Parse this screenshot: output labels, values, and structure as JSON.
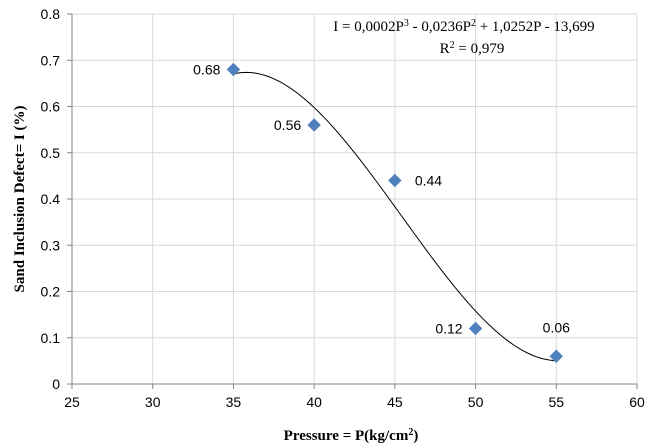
{
  "chart_data": {
    "type": "scatter",
    "title": "",
    "xlabel": "Pressure = P(kg/cm",
    "xlabel_sup": "2",
    "xlabel_end": ")",
    "ylabel": "Sand Inclusion Defect= I (%)",
    "xlim": [
      25,
      60
    ],
    "ylim": [
      0,
      0.8
    ],
    "x_ticks": [
      "25",
      "30",
      "35",
      "40",
      "45",
      "50",
      "55",
      "60"
    ],
    "y_ticks": [
      "0",
      "0.1",
      "0.2",
      "0.3",
      "0.4",
      "0.5",
      "0.6",
      "0.7",
      "0.8"
    ],
    "grid": true,
    "legend": "none",
    "marker_color": "#4f81bd",
    "points": [
      {
        "x": 35,
        "y": 0.68,
        "label": "0.68"
      },
      {
        "x": 40,
        "y": 0.56,
        "label": "0.56"
      },
      {
        "x": 45,
        "y": 0.44,
        "label": "0.44"
      },
      {
        "x": 50,
        "y": 0.12,
        "label": "0.12"
      },
      {
        "x": 55,
        "y": 0.06,
        "label": "0.06"
      }
    ],
    "trendline": {
      "type": "polynomial-3",
      "coefficients": [
        0.0002,
        -0.0236,
        1.0252,
        -13.699
      ],
      "x_range": [
        35,
        55
      ],
      "equation": {
        "t1": "I = 0,0002P",
        "s1": "3",
        "t2": " - 0,0236P",
        "s2": "2",
        "t3": " + 1,0252P - 13,699"
      },
      "r2": {
        "t1": "R",
        "s1": "2",
        "t2": " = 0,979"
      }
    }
  }
}
